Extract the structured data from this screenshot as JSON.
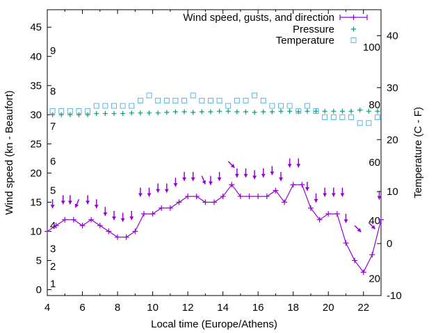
{
  "chart_data": {
    "type": "line",
    "xlabel": "Local time (Europe/Athens)",
    "ylabel_left": "Wind speed (kn - Beaufort)",
    "ylabel_right": "Temperature (C - F)",
    "xlim": [
      4,
      23
    ],
    "ylim_left": [
      -1,
      48
    ],
    "ylim_right": [
      -10,
      45
    ],
    "x_ticks": [
      4,
      6,
      8,
      10,
      12,
      14,
      16,
      18,
      20,
      22
    ],
    "y_left_ticks": [
      0,
      5,
      10,
      15,
      20,
      25,
      30,
      35,
      40,
      45
    ],
    "y_right_ticks": [
      -10,
      0,
      10,
      20,
      30,
      40
    ],
    "beaufort_labels": [
      {
        "text": "1",
        "kn": 1
      },
      {
        "text": "2",
        "kn": 4
      },
      {
        "text": "3",
        "kn": 7
      },
      {
        "text": "4",
        "kn": 11
      },
      {
        "text": "5",
        "kn": 17
      },
      {
        "text": "6",
        "kn": 22
      },
      {
        "text": "7",
        "kn": 28
      },
      {
        "text": "8",
        "kn": 34
      },
      {
        "text": "9",
        "kn": 41
      }
    ],
    "fahrenheit_labels": [
      {
        "text": "20",
        "c": -6.7
      },
      {
        "text": "40",
        "c": 4.4
      },
      {
        "text": "60",
        "c": 15.6
      },
      {
        "text": "80",
        "c": 26.7
      },
      {
        "text": "100",
        "c": 37.8
      }
    ],
    "legend": {
      "placement": "top-right",
      "entries": [
        "Wind speed, gusts, and direction",
        "Pressure",
        "Temperature"
      ]
    },
    "series": [
      {
        "name": "Wind speed, gusts, and direction",
        "color": "#9400d3",
        "x": [
          4.0,
          4.5,
          5.0,
          5.5,
          6.0,
          6.5,
          7.0,
          7.5,
          8.0,
          8.5,
          9.0,
          9.5,
          10.0,
          10.5,
          11.0,
          11.5,
          12.0,
          12.5,
          13.0,
          13.5,
          14.0,
          14.5,
          15.0,
          15.5,
          16.0,
          16.5,
          17.0,
          17.5,
          18.0,
          18.5,
          19.0,
          19.5,
          20.0,
          20.5,
          21.0,
          21.5,
          22.0,
          22.5,
          23.0
        ],
        "wind": [
          10,
          11,
          12,
          12,
          11,
          12,
          11,
          10,
          9,
          9,
          10,
          13,
          13,
          14,
          14,
          15,
          16,
          16,
          15,
          15,
          16,
          18,
          16,
          16,
          16,
          16,
          17,
          15,
          18,
          18,
          14,
          12,
          13,
          13,
          8,
          5,
          3,
          6,
          12
        ],
        "gust_arrows": [
          {
            "x": 4.3,
            "y": 15.5,
            "dir": "S"
          },
          {
            "x": 4.9,
            "y": 16.2,
            "dir": "S"
          },
          {
            "x": 5.3,
            "y": 16.2,
            "dir": "S"
          },
          {
            "x": 5.8,
            "y": 15.5,
            "dir": "SSW"
          },
          {
            "x": 6.3,
            "y": 16.2,
            "dir": "S"
          },
          {
            "x": 6.8,
            "y": 15.5,
            "dir": "S"
          },
          {
            "x": 7.3,
            "y": 14.2,
            "dir": "S"
          },
          {
            "x": 7.8,
            "y": 13.5,
            "dir": "S"
          },
          {
            "x": 8.3,
            "y": 13.2,
            "dir": "S"
          },
          {
            "x": 8.8,
            "y": 13.5,
            "dir": "S"
          },
          {
            "x": 9.3,
            "y": 17.5,
            "dir": "S"
          },
          {
            "x": 9.8,
            "y": 17.5,
            "dir": "S"
          },
          {
            "x": 10.3,
            "y": 18.2,
            "dir": "S"
          },
          {
            "x": 10.8,
            "y": 18.2,
            "dir": "S"
          },
          {
            "x": 11.3,
            "y": 19.2,
            "dir": "S"
          },
          {
            "x": 11.8,
            "y": 20.2,
            "dir": "S"
          },
          {
            "x": 12.3,
            "y": 20.2,
            "dir": "S"
          },
          {
            "x": 12.8,
            "y": 19.5,
            "dir": "SSE"
          },
          {
            "x": 13.3,
            "y": 19.5,
            "dir": "S"
          },
          {
            "x": 13.8,
            "y": 20.2,
            "dir": "S"
          },
          {
            "x": 14.3,
            "y": 22.0,
            "dir": "SE"
          },
          {
            "x": 14.8,
            "y": 20.8,
            "dir": "S"
          },
          {
            "x": 15.3,
            "y": 20.8,
            "dir": "S"
          },
          {
            "x": 15.8,
            "y": 20.5,
            "dir": "S"
          },
          {
            "x": 16.3,
            "y": 20.8,
            "dir": "S"
          },
          {
            "x": 16.8,
            "y": 21.2,
            "dir": "S"
          },
          {
            "x": 17.3,
            "y": 20.2,
            "dir": "S"
          },
          {
            "x": 17.8,
            "y": 22.5,
            "dir": "S"
          },
          {
            "x": 18.3,
            "y": 22.5,
            "dir": "S"
          },
          {
            "x": 18.8,
            "y": 18.5,
            "dir": "S"
          },
          {
            "x": 19.3,
            "y": 16.5,
            "dir": "S"
          },
          {
            "x": 19.8,
            "y": 17.5,
            "dir": "S"
          },
          {
            "x": 20.3,
            "y": 17.5,
            "dir": "S"
          },
          {
            "x": 20.8,
            "y": 17.5,
            "dir": "S"
          },
          {
            "x": 21.0,
            "y": 13.0,
            "dir": "S"
          },
          {
            "x": 21.5,
            "y": 11.0,
            "dir": "SE"
          },
          {
            "x": 22.3,
            "y": 11.5,
            "dir": "SE"
          },
          {
            "x": 22.9,
            "y": 17.0,
            "dir": "S"
          }
        ]
      },
      {
        "name": "Pressure",
        "color": "#009e73",
        "x": [
          4.3,
          4.8,
          5.3,
          5.8,
          6.3,
          6.8,
          7.3,
          7.8,
          8.3,
          8.8,
          9.3,
          9.8,
          10.3,
          10.8,
          11.3,
          11.8,
          12.3,
          12.8,
          13.3,
          13.8,
          14.3,
          14.8,
          15.3,
          15.8,
          16.3,
          16.8,
          17.3,
          17.8,
          18.3,
          18.8,
          19.3,
          19.8,
          20.3,
          20.8,
          21.3,
          21.8,
          22.3,
          22.8
        ],
        "values": [
          30.0,
          30.0,
          30.0,
          30.0,
          30.0,
          30.2,
          30.2,
          30.2,
          30.2,
          30.3,
          30.3,
          30.3,
          30.3,
          30.4,
          30.5,
          30.5,
          30.4,
          30.5,
          30.5,
          30.6,
          30.6,
          30.5,
          30.5,
          30.4,
          30.5,
          30.5,
          30.6,
          30.6,
          30.5,
          30.6,
          30.6,
          30.6,
          30.6,
          30.6,
          30.6,
          30.8,
          30.6,
          30.6
        ]
      },
      {
        "name": "Temperature",
        "color": "#56b4e9",
        "x": [
          4.3,
          4.8,
          5.3,
          5.8,
          6.3,
          6.8,
          7.3,
          7.8,
          8.3,
          8.8,
          9.3,
          9.8,
          10.3,
          10.8,
          11.3,
          11.8,
          12.3,
          12.8,
          13.3,
          13.8,
          14.3,
          14.8,
          15.3,
          15.8,
          16.3,
          16.8,
          17.3,
          17.8,
          18.3,
          18.8,
          19.3,
          19.8,
          20.3,
          20.8,
          21.3,
          21.8,
          22.3,
          22.8
        ],
        "values": [
          25.5,
          25.5,
          25.5,
          25.5,
          25.5,
          26.5,
          26.5,
          26.5,
          26.5,
          26.5,
          27.5,
          28.5,
          27.5,
          27.5,
          27.5,
          27.5,
          28.5,
          27.5,
          27.5,
          27.5,
          26.5,
          27.5,
          27.5,
          28.5,
          27.5,
          26.5,
          26.5,
          26.5,
          25.5,
          26.5,
          25.5,
          24.3,
          24.3,
          24.3,
          24.3,
          23.2,
          23.2,
          24.3
        ]
      }
    ]
  }
}
